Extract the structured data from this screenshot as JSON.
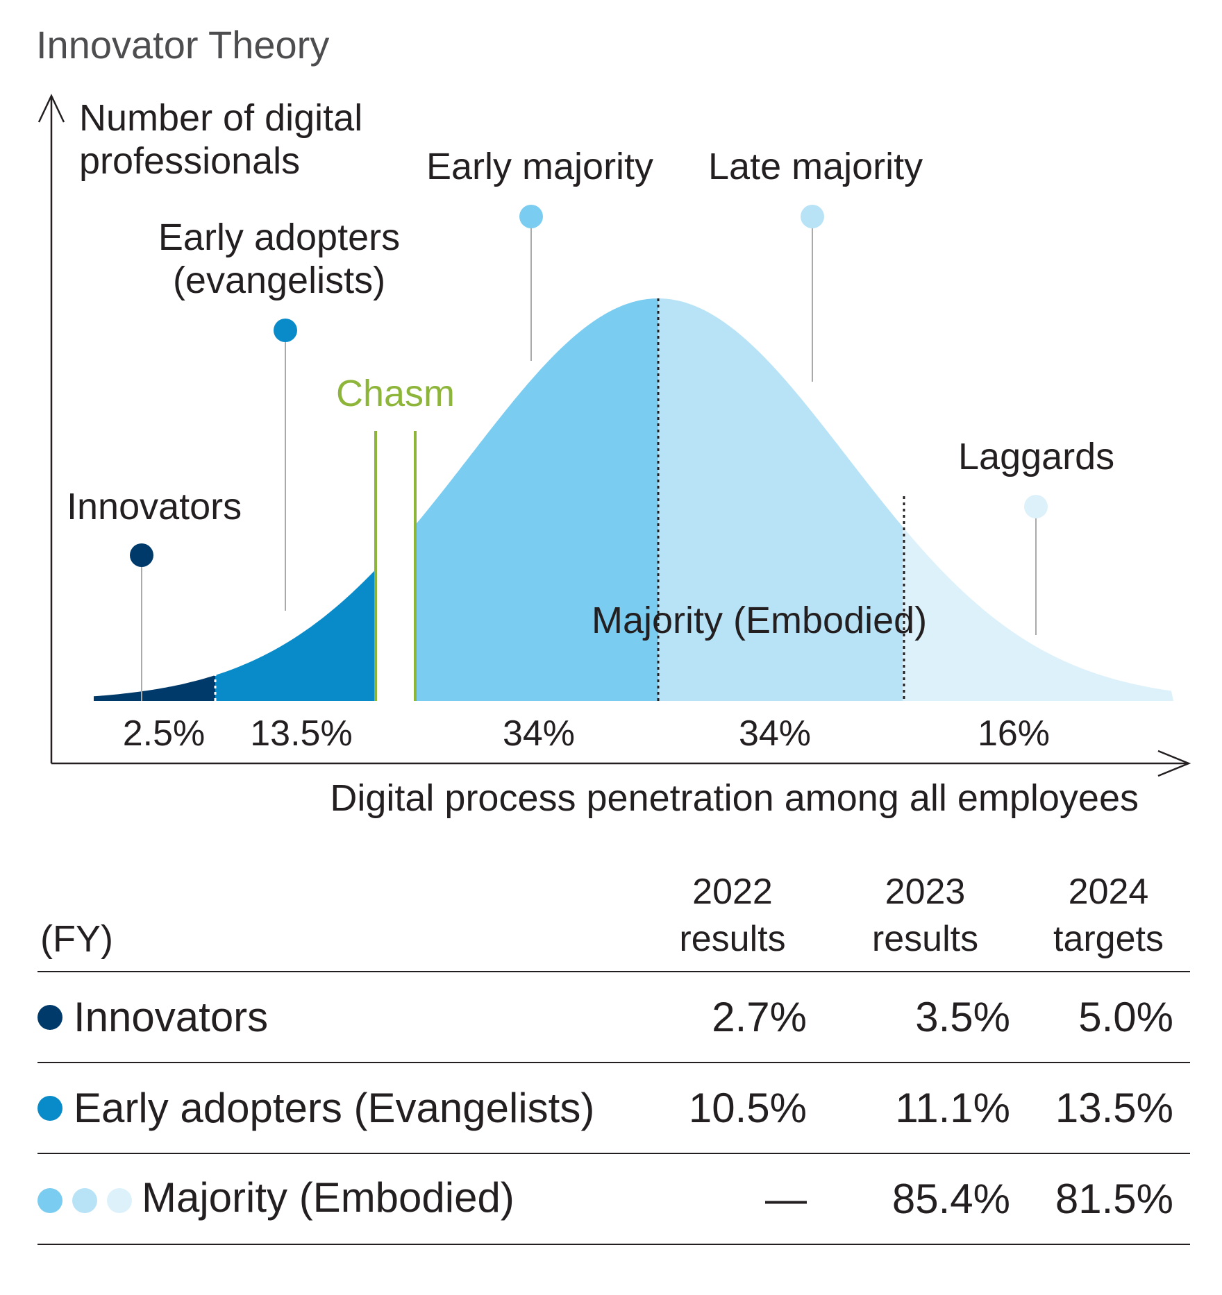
{
  "title": "Innovator Theory",
  "y_axis_label": [
    "Number of digital",
    "professionals"
  ],
  "x_axis_label": "Digital process penetration among all employees",
  "chasm_label": "Chasm",
  "majority_label": "Majority (Embodied)",
  "segments": [
    {
      "name": "Innovators",
      "name_lines": [
        "Innovators"
      ],
      "share": "2.5%",
      "color": "#003a6b"
    },
    {
      "name": "Early adopters (evangelists)",
      "name_lines": [
        "Early adopters",
        "(evangelists)"
      ],
      "share": "13.5%",
      "color": "#0a8bc9"
    },
    {
      "name": "Early majority",
      "name_lines": [
        "Early majority"
      ],
      "share": "34%",
      "color": "#7acdf0"
    },
    {
      "name": "Late majority",
      "name_lines": [
        "Late majority"
      ],
      "share": "34%",
      "color": "#b8e3f7"
    },
    {
      "name": "Laggards",
      "name_lines": [
        "Laggards"
      ],
      "share": "16%",
      "color": "#ddf1fb"
    }
  ],
  "colors": {
    "innovators": "#003a6b",
    "early_adopters": "#0a8bc9",
    "early_majority": "#7acdf0",
    "late_majority": "#b8e3f7",
    "laggards": "#ddf1fb",
    "chasm": "#8db53a",
    "axis": "#231f20",
    "leader_line": "#aaaaaa"
  },
  "table": {
    "fy_label": "(FY)",
    "columns": [
      {
        "year": "2022",
        "kind": "results"
      },
      {
        "year": "2023",
        "kind": "results"
      },
      {
        "year": "2024",
        "kind": "targets"
      }
    ],
    "rows": [
      {
        "label": "Innovators",
        "values": [
          "2.7%",
          "3.5%",
          "5.0%"
        ],
        "dot_colors": [
          "#003a6b"
        ]
      },
      {
        "label": "Early adopters (Evangelists)",
        "values": [
          "10.5%",
          "11.1%",
          "13.5%"
        ],
        "dot_colors": [
          "#0a8bc9"
        ]
      },
      {
        "label": "Majority (Embodied)",
        "values": [
          "—",
          "85.4%",
          "81.5%"
        ],
        "dot_colors": [
          "#7acdf0",
          "#b8e3f7",
          "#ddf1fb"
        ]
      }
    ]
  }
}
